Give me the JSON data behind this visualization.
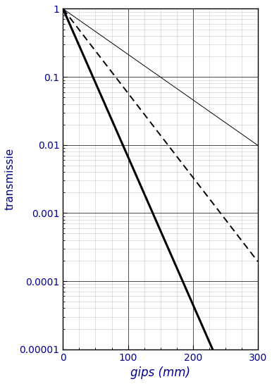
{
  "title": "",
  "xlabel": "gips (mm)",
  "ylabel": "transmissie",
  "xlim": [
    0,
    300
  ],
  "ylim": [
    1e-05,
    1
  ],
  "x_ticks": [
    0,
    100,
    200,
    300
  ],
  "lines": [
    {
      "label": "thick_solid",
      "style": "solid",
      "linewidth": 2.2,
      "color": "#000000",
      "mu": 0.05
    },
    {
      "label": "dashed",
      "style": "dashed",
      "linewidth": 1.4,
      "color": "#000000",
      "mu": 0.0285,
      "dashes": [
        5,
        3
      ]
    },
    {
      "label": "thin_solid",
      "style": "solid",
      "linewidth": 0.7,
      "color": "#000000",
      "mu": 0.0154
    }
  ],
  "grid_major_color": "#000000",
  "grid_minor_color": "#aaaaaa",
  "background_color": "#ffffff",
  "xlabel_fontsize": 12,
  "ylabel_fontsize": 11,
  "tick_fontsize": 10,
  "tick_color": "#00008B",
  "label_color": "#00008B"
}
